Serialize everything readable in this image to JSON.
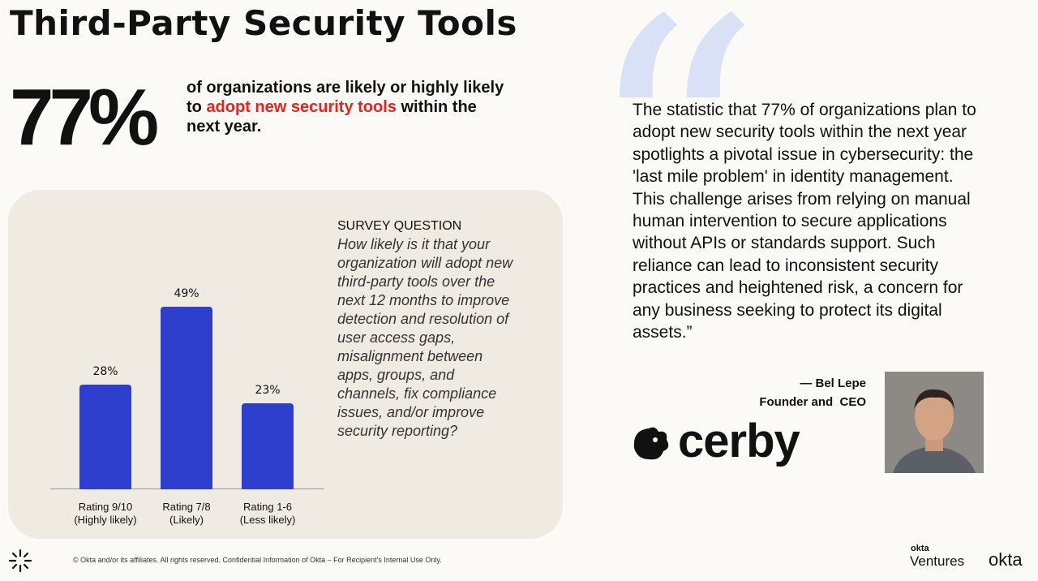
{
  "title": "Third-Party Security Tools",
  "headline": {
    "figure": "77%",
    "text_before": "of organizations are likely or highly likely to ",
    "highlight": "adopt new security tools",
    "text_after": " within the next year."
  },
  "survey": {
    "label": "SURVEY QUESTION",
    "question": "How likely is it that your organization will adopt new third-party tools over the next 12 months to improve detection and resolution of user access gaps, misalignment between apps, groups, and channels, fix compliance issues, and/or improve security reporting?"
  },
  "chart_data": {
    "type": "bar",
    "categories": [
      "Rating 9/10\n(Highly likely)",
      "Rating 7/8\n(Likely)",
      "Rating 1-6\n(Less likely)"
    ],
    "values": [
      28,
      49,
      23
    ],
    "value_labels": [
      "28%",
      "49%",
      "23%"
    ],
    "color": "#2d3fcc"
  },
  "quote": {
    "text": "The statistic that 77% of organizations plan to adopt new security tools within the next year spotlights a pivotal issue in cybersecurity: the 'last mile problem' in identity management. This challenge arises from relying on manual human intervention to secure applications without APIs or standards support. Such reliance can lead to inconsistent security practices and heightened risk, a concern for any business seeking to protect its digital assets.”",
    "author": "— Bel Lepe",
    "role": "Founder and  CEO",
    "company": "cerby"
  },
  "footer": {
    "copyright": "© Okta and/or its affiliates. All rights reserved. Confidential Information of Okta – For Recipient's Internal Use Only.",
    "brand_small": "okta",
    "brand_sub": "Ventures",
    "brand": "okta"
  }
}
